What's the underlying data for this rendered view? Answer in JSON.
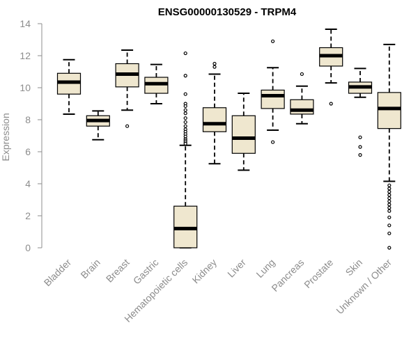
{
  "chart_data": {
    "type": "boxplot",
    "title": "ENSG00000130529 - TRPM4",
    "ylabel": "Expression",
    "xlabel": "",
    "ylim": [
      0,
      14
    ],
    "yticks": [
      0,
      2,
      4,
      6,
      8,
      10,
      12,
      14
    ],
    "grid": false,
    "legend": "none",
    "colors": {
      "box_fill": "#efe7cf",
      "box_stroke": "#000000",
      "axis": "#8c8c8c",
      "median": "#000000"
    },
    "categories": [
      "Bladder",
      "Brain",
      "Breast",
      "Gastric",
      "Hematopoietic cells",
      "Kidney",
      "Liver",
      "Lung",
      "Pancreas",
      "Prostate",
      "Skin",
      "Unknown / Other"
    ],
    "boxes": [
      {
        "name": "Bladder",
        "min": 8.35,
        "q1": 9.6,
        "median": 10.35,
        "q3": 10.9,
        "max": 11.75,
        "outliers": []
      },
      {
        "name": "Brain",
        "min": 6.75,
        "q1": 7.6,
        "median": 7.95,
        "q3": 8.25,
        "max": 8.55,
        "outliers": []
      },
      {
        "name": "Breast",
        "min": 8.6,
        "q1": 10.05,
        "median": 10.85,
        "q3": 11.5,
        "max": 12.35,
        "outliers": [
          7.6
        ]
      },
      {
        "name": "Gastric",
        "min": 9.0,
        "q1": 9.65,
        "median": 10.25,
        "q3": 10.65,
        "max": 11.45,
        "outliers": []
      },
      {
        "name": "Hematopoietic cells",
        "min": 0,
        "q1": 0,
        "median": 1.2,
        "q3": 2.6,
        "max": 6.4,
        "outliers": [
          12.15,
          10.75,
          9.6,
          9.0,
          8.85,
          8.6,
          8.4,
          8.1,
          7.85,
          7.6,
          7.4,
          7.25,
          7.1,
          6.95,
          6.8,
          6.7,
          6.6,
          6.5
        ]
      },
      {
        "name": "Kidney",
        "min": 5.25,
        "q1": 7.25,
        "median": 7.75,
        "q3": 8.75,
        "max": 10.85,
        "outliers": [
          11.3,
          11.5
        ]
      },
      {
        "name": "Liver",
        "min": 4.85,
        "q1": 5.9,
        "median": 6.85,
        "q3": 8.25,
        "max": 9.65,
        "outliers": []
      },
      {
        "name": "Lung",
        "min": 7.35,
        "q1": 8.7,
        "median": 9.5,
        "q3": 9.85,
        "max": 11.25,
        "outliers": [
          12.9,
          6.6
        ]
      },
      {
        "name": "Pancreas",
        "min": 7.75,
        "q1": 8.35,
        "median": 8.6,
        "q3": 9.25,
        "max": 10.1,
        "outliers": [
          10.85
        ]
      },
      {
        "name": "Prostate",
        "min": 10.3,
        "q1": 11.35,
        "median": 12.0,
        "q3": 12.5,
        "max": 13.65,
        "outliers": [
          9.0
        ]
      },
      {
        "name": "Skin",
        "min": 9.4,
        "q1": 9.65,
        "median": 10.05,
        "q3": 10.35,
        "max": 11.2,
        "outliers": [
          6.9,
          6.3,
          5.8
        ]
      },
      {
        "name": "Unknown / Other",
        "min": 4.15,
        "q1": 7.45,
        "median": 8.7,
        "q3": 9.7,
        "max": 12.7,
        "outliers": [
          3.9,
          3.7,
          3.5,
          3.3,
          3.1,
          2.9,
          2.7,
          2.5,
          2.3,
          1.9,
          1.4,
          0.9,
          0.0
        ]
      }
    ]
  }
}
